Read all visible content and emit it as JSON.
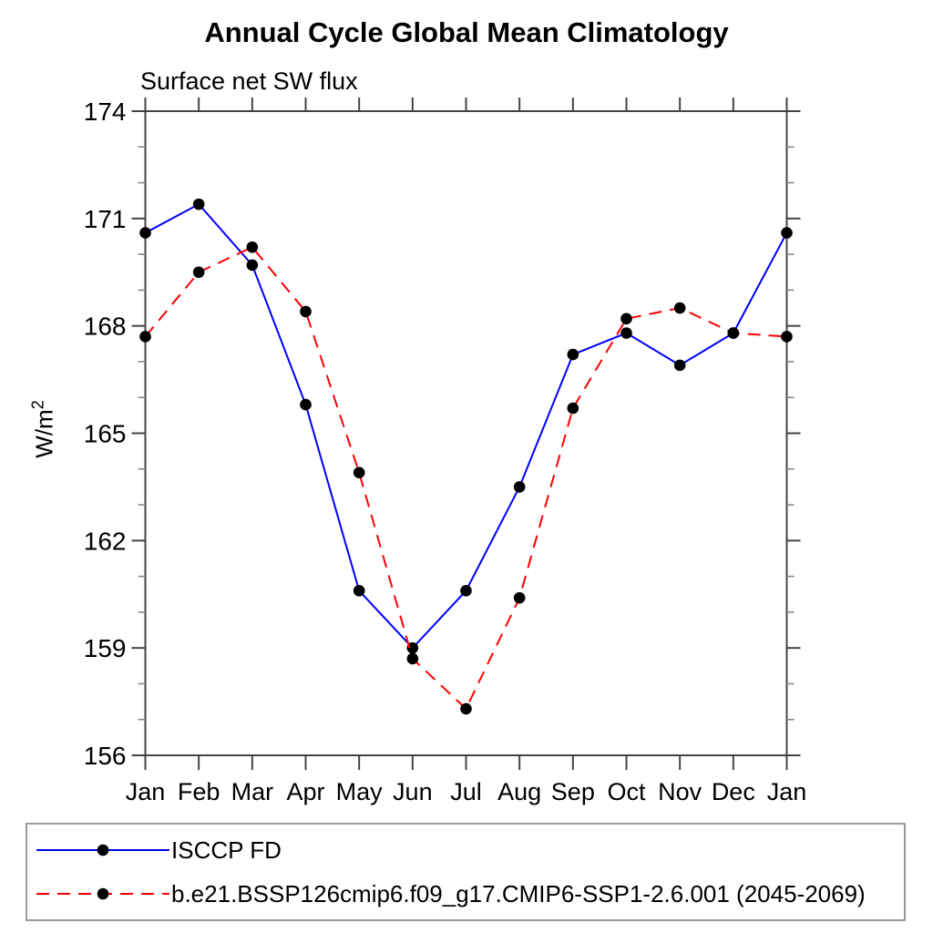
{
  "page": {
    "background": "#ffffff"
  },
  "chart_data": {
    "type": "line",
    "title": "Annual Cycle Global Mean Climatology",
    "subtitle": "Surface net SW flux",
    "ylabel_base": "W/m",
    "ylabel_exp": "2",
    "categories": [
      "Jan",
      "Feb",
      "Mar",
      "Apr",
      "May",
      "Jun",
      "Jul",
      "Aug",
      "Sep",
      "Oct",
      "Nov",
      "Dec",
      "Jan"
    ],
    "series": [
      {
        "name": "ISCCP FD",
        "color": "#0000ff",
        "line_style": "solid",
        "marker": "filled-circle",
        "marker_color": "#000000",
        "values": [
          170.6,
          171.4,
          169.7,
          165.8,
          160.6,
          159.0,
          160.6,
          163.5,
          167.2,
          167.8,
          166.9,
          167.8,
          170.6
        ]
      },
      {
        "name": "b.e21.BSSP126cmip6.f09_g17.CMIP6-SSP1-2.6.001 (2045-2069)",
        "color": "#ff0000",
        "line_style": "dashed",
        "marker": "filled-circle",
        "marker_color": "#000000",
        "values": [
          167.7,
          169.5,
          170.2,
          168.4,
          163.9,
          158.7,
          157.3,
          160.4,
          165.7,
          168.2,
          168.5,
          167.8,
          167.7
        ]
      }
    ],
    "y_axis": {
      "min": 156,
      "max": 174,
      "major_step": 3,
      "minor_step": 1,
      "unit": "W/m2"
    },
    "x_axis": {
      "tick_labels": [
        "Jan",
        "Feb",
        "Mar",
        "Apr",
        "May",
        "Jun",
        "Jul",
        "Aug",
        "Sep",
        "Oct",
        "Nov",
        "Dec",
        "Jan"
      ]
    },
    "legend": {
      "position": "bottom",
      "border_color": "#9a9a9a"
    },
    "grid": false,
    "axis_color": "#444444",
    "minor_tick_color": "#888888"
  }
}
